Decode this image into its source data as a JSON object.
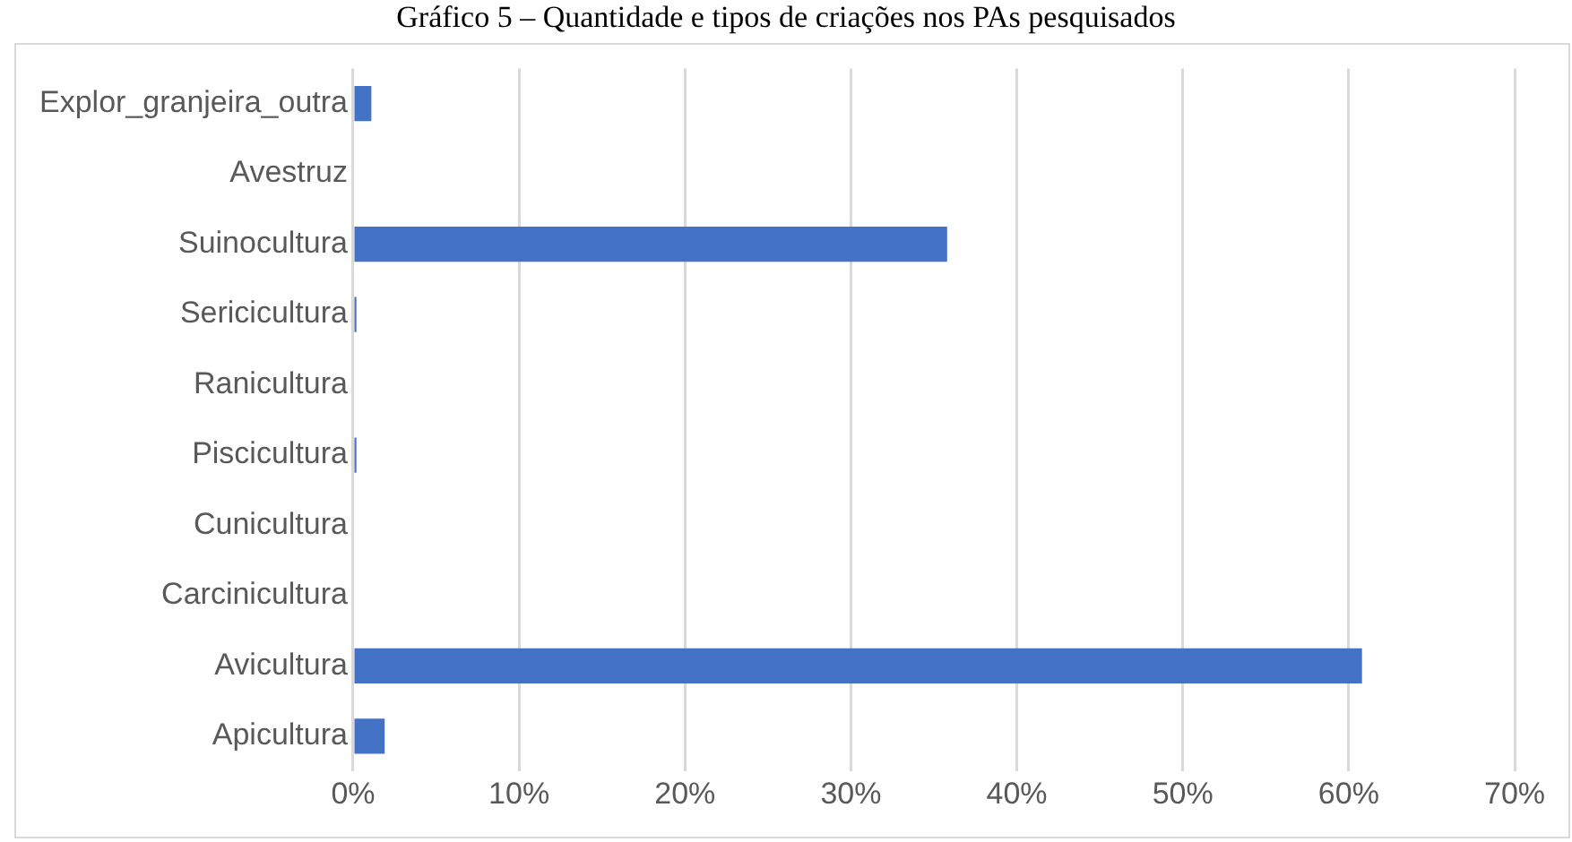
{
  "chart_data": {
    "type": "bar",
    "orientation": "horizontal",
    "title": "Gráfico 5 – Quantidade e tipos de criações nos PAs pesquisados",
    "categories": [
      "Explor_granjeira_outra",
      "Avestruz",
      "Suinocultura",
      "Sericicultura",
      "Ranicultura",
      "Piscicultura",
      "Cunicultura",
      "Carcinicultura",
      "Avicultura",
      "Apicultura"
    ],
    "values": [
      1.1,
      0,
      35.8,
      0.2,
      0,
      0.2,
      0,
      0,
      60.8,
      1.9
    ],
    "color": "#4472c4",
    "xlim": [
      0,
      70
    ],
    "xticks": [
      {
        "value": 0,
        "label": "0%"
      },
      {
        "value": 10,
        "label": "10%"
      },
      {
        "value": 20,
        "label": "20%"
      },
      {
        "value": 30,
        "label": "30%"
      },
      {
        "value": 40,
        "label": "40%"
      },
      {
        "value": 50,
        "label": "50%"
      },
      {
        "value": 60,
        "label": "60%"
      },
      {
        "value": 70,
        "label": "70%"
      }
    ],
    "grid": "x",
    "legend": false
  }
}
